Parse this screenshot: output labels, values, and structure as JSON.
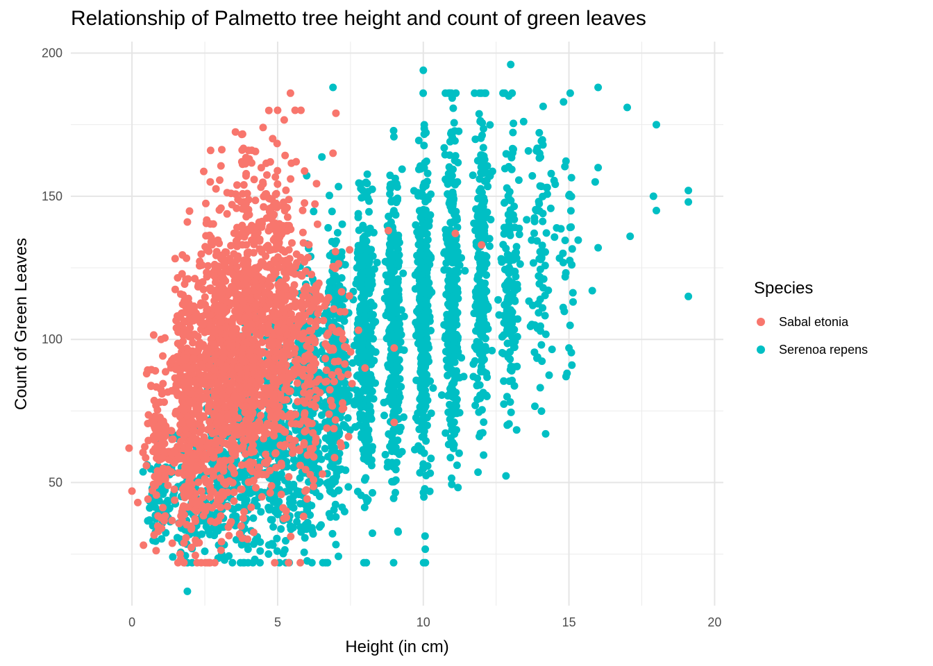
{
  "chart_data": {
    "type": "scatter",
    "title": "Relationship of Palmetto tree height and count of green leaves",
    "xlabel": "Height (in cm)",
    "ylabel": "Count of Green Leaves",
    "xlim": [
      -2.1,
      20.3
    ],
    "ylim": [
      7,
      204
    ],
    "x_ticks": [
      0,
      5,
      10,
      15,
      20
    ],
    "y_ticks": [
      50,
      100,
      150,
      200
    ],
    "grid": true,
    "legend": {
      "title": "Species",
      "position": "right"
    },
    "series": [
      {
        "name": "Sabal etonia",
        "color": "#F8766D",
        "points": [
          [
            -0.1,
            62
          ],
          [
            0.0,
            47
          ],
          [
            0.2,
            43
          ],
          [
            1.0,
            100
          ],
          [
            1.9,
            141
          ],
          [
            2.7,
            166
          ],
          [
            3.4,
            151
          ],
          [
            4.0,
            166
          ],
          [
            4.5,
            174
          ],
          [
            5.0,
            180
          ],
          [
            5.6,
            180
          ],
          [
            5.8,
            180
          ],
          [
            7.0,
            179
          ],
          [
            6.9,
            165
          ],
          [
            8.8,
            138
          ],
          [
            11.1,
            137
          ],
          [
            12.0,
            133
          ],
          [
            9.0,
            97
          ],
          [
            9.0,
            71
          ],
          [
            8.0,
            90
          ]
        ],
        "clusters": [
          {
            "cx": 1.0,
            "cy": 60,
            "sx": 0.25,
            "sy": 15,
            "n": 120
          },
          {
            "cx": 2.0,
            "cy": 75,
            "sx": 0.3,
            "sy": 24,
            "n": 420
          },
          {
            "cx": 3.0,
            "cy": 90,
            "sx": 0.35,
            "sy": 27,
            "n": 520
          },
          {
            "cx": 4.0,
            "cy": 102,
            "sx": 0.3,
            "sy": 28,
            "n": 520
          },
          {
            "cx": 5.0,
            "cy": 104,
            "sx": 0.3,
            "sy": 28,
            "n": 420
          },
          {
            "cx": 6.0,
            "cy": 98,
            "sx": 0.3,
            "sy": 25,
            "n": 170
          },
          {
            "cx": 7.0,
            "cy": 92,
            "sx": 0.3,
            "sy": 20,
            "n": 60
          }
        ]
      },
      {
        "name": "Serenoa repens",
        "color": "#00BFC4",
        "points": [
          [
            1.9,
            12
          ],
          [
            1.4,
            24
          ],
          [
            2.5,
            26
          ],
          [
            6.9,
            188
          ],
          [
            10.0,
            194
          ],
          [
            13.0,
            196
          ],
          [
            16.0,
            188
          ],
          [
            17.0,
            181
          ],
          [
            18.0,
            175
          ],
          [
            17.9,
            150
          ],
          [
            18.0,
            145
          ],
          [
            19.1,
            152
          ],
          [
            19.1,
            148
          ],
          [
            19.1,
            115
          ],
          [
            17.1,
            136
          ],
          [
            16.0,
            160
          ],
          [
            15.9,
            155
          ],
          [
            16.0,
            132
          ],
          [
            15.8,
            117
          ],
          [
            15.0,
            97
          ],
          [
            15.1,
            91
          ],
          [
            14.9,
            87
          ],
          [
            14.2,
            67
          ],
          [
            8.1,
            44
          ],
          [
            7.0,
            38
          ]
        ],
        "clusters": [
          {
            "cx": 1.0,
            "cy": 45,
            "sx": 0.25,
            "sy": 10,
            "n": 60
          },
          {
            "cx": 2.0,
            "cy": 45,
            "sx": 0.3,
            "sy": 12,
            "n": 110
          },
          {
            "cx": 3.0,
            "cy": 55,
            "sx": 0.3,
            "sy": 17,
            "n": 170
          },
          {
            "cx": 4.0,
            "cy": 62,
            "sx": 0.3,
            "sy": 20,
            "n": 220
          },
          {
            "cx": 5.0,
            "cy": 68,
            "sx": 0.3,
            "sy": 22,
            "n": 270
          },
          {
            "cx": 6.0,
            "cy": 78,
            "sx": 0.25,
            "sy": 24,
            "n": 320
          },
          {
            "cx": 7.0,
            "cy": 88,
            "sx": 0.2,
            "sy": 25,
            "n": 360
          },
          {
            "cx": 8.0,
            "cy": 97,
            "sx": 0.15,
            "sy": 25,
            "n": 360
          },
          {
            "cx": 9.0,
            "cy": 103,
            "sx": 0.12,
            "sy": 26,
            "n": 360
          },
          {
            "cx": 10.0,
            "cy": 112,
            "sx": 0.12,
            "sy": 27,
            "n": 340
          },
          {
            "cx": 11.0,
            "cy": 118,
            "sx": 0.12,
            "sy": 28,
            "n": 300
          },
          {
            "cx": 12.0,
            "cy": 120,
            "sx": 0.12,
            "sy": 28,
            "n": 240
          },
          {
            "cx": 13.0,
            "cy": 122,
            "sx": 0.15,
            "sy": 27,
            "n": 150
          },
          {
            "cx": 14.0,
            "cy": 130,
            "sx": 0.2,
            "sy": 25,
            "n": 80
          },
          {
            "cx": 15.0,
            "cy": 140,
            "sx": 0.15,
            "sy": 22,
            "n": 30
          }
        ]
      }
    ]
  }
}
